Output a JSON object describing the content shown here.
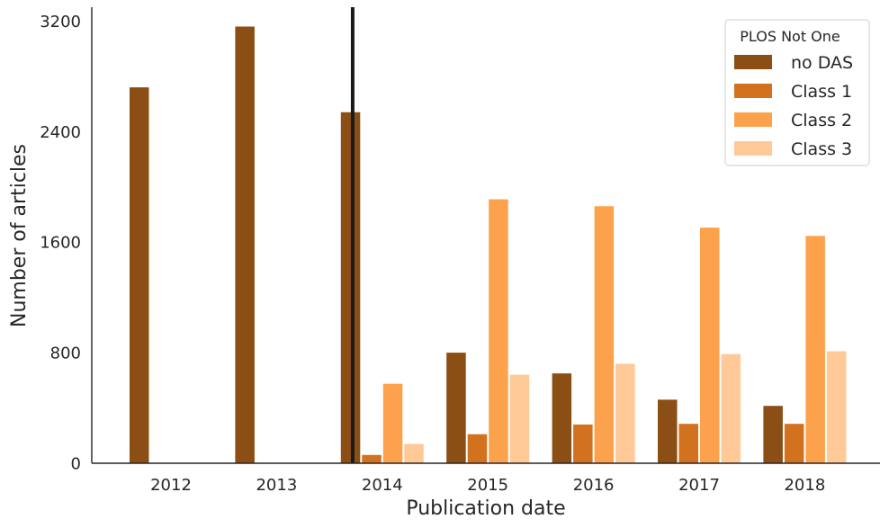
{
  "chart_data": {
    "type": "bar",
    "xlabel": "Publication date",
    "ylabel": "Number of articles",
    "categories": [
      "2012",
      "2013",
      "2014",
      "2015",
      "2016",
      "2017",
      "2018"
    ],
    "ylim": [
      0,
      3300
    ],
    "yticks": [
      0,
      800,
      1600,
      2400,
      3200
    ],
    "grid": false,
    "legend": {
      "title": "PLOS Not One",
      "placement": "top-right"
    },
    "series": [
      {
        "name": "no DAS",
        "color": "#8B4E14",
        "values": [
          2720,
          3160,
          2540,
          800,
          650,
          460,
          415
        ]
      },
      {
        "name": "Class 1",
        "color": "#D2711E",
        "values": [
          0,
          0,
          60,
          210,
          280,
          285,
          285
        ]
      },
      {
        "name": "Class 2",
        "color": "#FCA24D",
        "values": [
          0,
          0,
          575,
          1910,
          1860,
          1705,
          1645
        ]
      },
      {
        "name": "Class 3",
        "color": "#FFC998",
        "values": [
          0,
          0,
          140,
          640,
          720,
          790,
          810
        ]
      }
    ],
    "annotations": [
      {
        "type": "vertical-line",
        "x_category": "2014",
        "offset_fraction": -0.28,
        "color": "#1a1a1a"
      }
    ]
  }
}
